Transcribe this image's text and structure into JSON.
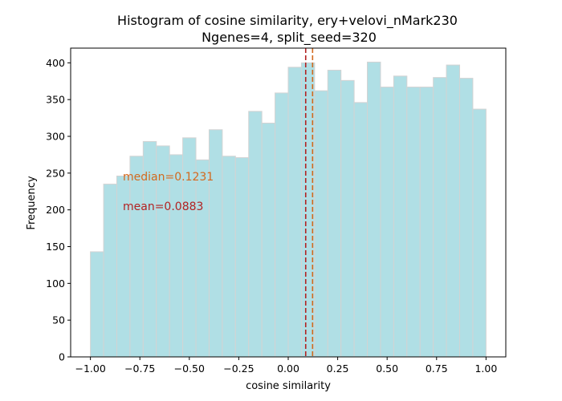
{
  "chart_data": {
    "type": "bar",
    "title": "Histogram of cosine similarity, ery+velovi_nMark230",
    "subtitle": "Ngenes=4, split_seed=320",
    "xlabel": "cosine similarity",
    "ylabel": "Frequency",
    "xlim": [
      -1.1,
      1.1
    ],
    "ylim": [
      0,
      420
    ],
    "x_ticks": [
      -1.0,
      -0.75,
      -0.5,
      -0.25,
      0.0,
      0.25,
      0.5,
      0.75,
      1.0
    ],
    "x_tick_labels": [
      "−1.00",
      "−0.75",
      "−0.50",
      "−0.25",
      "0.00",
      "0.25",
      "0.50",
      "0.75",
      "1.00"
    ],
    "y_ticks": [
      0,
      50,
      100,
      150,
      200,
      250,
      300,
      350,
      400
    ],
    "y_tick_labels": [
      "0",
      "50",
      "100",
      "150",
      "200",
      "250",
      "300",
      "350",
      "400"
    ],
    "bin_edges": [
      -1.0,
      -0.9333,
      -0.8667,
      -0.8,
      -0.7333,
      -0.6667,
      -0.6,
      -0.5333,
      -0.4667,
      -0.4,
      -0.3333,
      -0.2667,
      -0.2,
      -0.1333,
      -0.0667,
      0.0,
      0.0667,
      0.1333,
      0.2,
      0.2667,
      0.3333,
      0.4,
      0.4667,
      0.5333,
      0.6,
      0.6667,
      0.7333,
      0.8,
      0.8667,
      0.9333,
      1.0
    ],
    "values": [
      143,
      235,
      246,
      273,
      293,
      287,
      275,
      298,
      268,
      309,
      273,
      271,
      334,
      318,
      359,
      394,
      400,
      362,
      390,
      376,
      346,
      401,
      367,
      382,
      367,
      367,
      380,
      397,
      379,
      337
    ],
    "bar_color": "#b0dfe5",
    "bar_edge_color": "#d3d3d3",
    "median": {
      "value": 0.1231,
      "label": "median=0.1231",
      "color": "#d2691e"
    },
    "mean": {
      "value": 0.0883,
      "label": "mean=0.0883",
      "color": "#b22222"
    },
    "grid": false
  }
}
